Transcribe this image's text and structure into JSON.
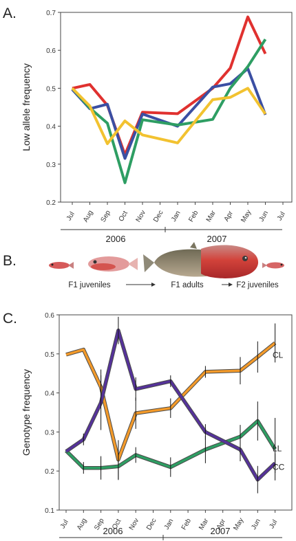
{
  "panel_a": {
    "letter": "A.",
    "chart_data": {
      "type": "line",
      "ylabel": "Low allele frequency",
      "ylim": [
        0.2,
        0.7
      ],
      "yticks": [
        "0.2",
        "0.3",
        "0.4",
        "0.5",
        "0.6",
        "0.7"
      ],
      "categories": [
        "Jul",
        "Aug",
        "Sep",
        "Oct",
        "Nov",
        "Dec",
        "Jan",
        "Feb",
        "Mar",
        "Apr",
        "May",
        "Jun",
        "Jul"
      ],
      "x": [
        0,
        1,
        2,
        3,
        4,
        6,
        8,
        9,
        10,
        11
      ],
      "years": [
        "2006",
        "2007"
      ],
      "grid": false,
      "series": [
        {
          "color": "#e0312f",
          "values": [
            0.5,
            0.51,
            0.455,
            0.325,
            0.437,
            0.433,
            0.5,
            0.553,
            0.688,
            0.591
          ]
        },
        {
          "color": "#3b4fa3",
          "values": [
            0.497,
            0.446,
            0.458,
            0.315,
            0.432,
            0.4,
            0.503,
            0.512,
            0.552,
            0.43
          ]
        },
        {
          "color": "#2e9e63",
          "values": [
            0.5,
            0.448,
            0.408,
            0.251,
            0.417,
            0.403,
            0.418,
            0.5,
            0.557,
            0.629
          ]
        },
        {
          "color": "#f2c230",
          "values": [
            0.5,
            0.453,
            0.354,
            0.414,
            0.377,
            0.356,
            0.47,
            0.476,
            0.5,
            0.432
          ]
        }
      ]
    }
  },
  "panel_b": {
    "letter": "B.",
    "stages": [
      "F1 juveniles",
      "F1 adults",
      "F2 juveniles"
    ]
  },
  "panel_c": {
    "letter": "C.",
    "chart_data": {
      "type": "line",
      "ylabel": "Genotype frequency",
      "ylim": [
        0.1,
        0.6
      ],
      "yticks": [
        "0.1",
        "0.2",
        "0.3",
        "0.4",
        "0.5",
        "0.6"
      ],
      "categories": [
        "Jul",
        "Aug",
        "Sep",
        "Oct",
        "Nov",
        "Dec",
        "Jan",
        "Feb",
        "Mar",
        "Apr",
        "May",
        "Jun",
        "Jul"
      ],
      "x": [
        0,
        1,
        2,
        3,
        4,
        6,
        8,
        10,
        11,
        12
      ],
      "years": [
        "2006",
        "2007"
      ],
      "grid": false,
      "series": [
        {
          "name": "CL",
          "color": "#f39a2a",
          "values": [
            0.498,
            0.511,
            0.415,
            0.229,
            0.348,
            0.361,
            0.454,
            0.457,
            0.492,
            0.528
          ],
          "errors": [
            0,
            0,
            0.045,
            0.05,
            0.04,
            0.025,
            0.015,
            0.035,
            0.04,
            0.05
          ]
        },
        {
          "name": "LL",
          "color": "#2e9e63",
          "values": [
            0.252,
            0.208,
            0.208,
            0.212,
            0.241,
            0.21,
            0.255,
            0.288,
            0.328,
            0.256
          ],
          "errors": [
            0,
            0.015,
            0.03,
            0.035,
            0.02,
            0.025,
            0.035,
            0.03,
            0.05,
            0.08
          ]
        },
        {
          "name": "CC",
          "color": "#55329a",
          "values": [
            0.25,
            0.281,
            0.375,
            0.56,
            0.41,
            0.43,
            0.3,
            0.255,
            0.178,
            0.22
          ],
          "errors": [
            0,
            0.015,
            0.07,
            0.035,
            0.03,
            0.015,
            0.02,
            0.03,
            0.035,
            0.025
          ]
        }
      ]
    }
  }
}
